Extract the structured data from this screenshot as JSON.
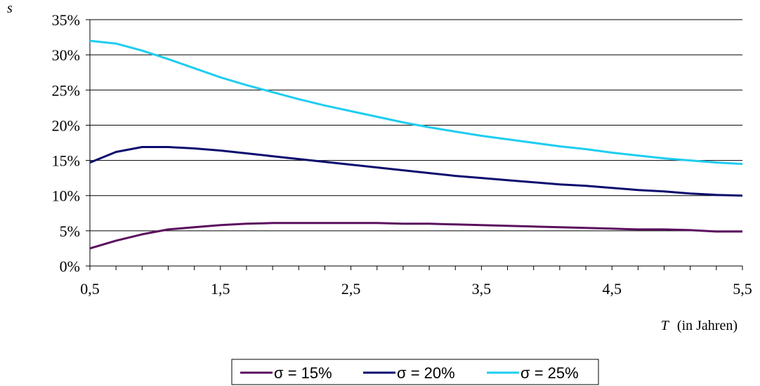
{
  "chart_data": {
    "type": "line",
    "ylabel": "s",
    "xlabel": {
      "symbol": "T",
      "text": "(in Jahren)"
    },
    "xlim": [
      0.5,
      5.5
    ],
    "ylim": [
      0,
      0.35
    ],
    "grid": "horizontal",
    "legend_position": "bottom",
    "x_ticks": [
      {
        "value": 0.5,
        "label": "0,5"
      },
      {
        "value": 1.5,
        "label": "1,5"
      },
      {
        "value": 2.5,
        "label": "2,5"
      },
      {
        "value": 3.5,
        "label": "3,5"
      },
      {
        "value": 4.5,
        "label": "4,5"
      },
      {
        "value": 5.5,
        "label": "5,5"
      }
    ],
    "y_ticks": [
      {
        "value": 0,
        "label": "0%"
      },
      {
        "value": 0.05,
        "label": "5%"
      },
      {
        "value": 0.1,
        "label": "10%"
      },
      {
        "value": 0.15,
        "label": "15%"
      },
      {
        "value": 0.2,
        "label": "20%"
      },
      {
        "value": 0.25,
        "label": "25%"
      },
      {
        "value": 0.3,
        "label": "30%"
      },
      {
        "value": 0.35,
        "label": "35%"
      }
    ],
    "x": [
      0.5,
      0.7,
      0.9,
      1.1,
      1.3,
      1.5,
      1.7,
      1.9,
      2.1,
      2.3,
      2.5,
      2.7,
      2.9,
      3.1,
      3.3,
      3.5,
      3.7,
      3.9,
      4.1,
      4.3,
      4.5,
      4.7,
      4.9,
      5.1,
      5.3,
      5.5
    ],
    "series": [
      {
        "name": "σ = 15%",
        "color": "#5b0f5e",
        "values": [
          0.025,
          0.036,
          0.045,
          0.052,
          0.055,
          0.058,
          0.06,
          0.061,
          0.061,
          0.061,
          0.061,
          0.061,
          0.06,
          0.06,
          0.059,
          0.058,
          0.057,
          0.056,
          0.055,
          0.054,
          0.053,
          0.052,
          0.052,
          0.051,
          0.049,
          0.049
        ]
      },
      {
        "name": "σ = 20%",
        "color": "#0b0b6e",
        "values": [
          0.147,
          0.162,
          0.169,
          0.169,
          0.167,
          0.164,
          0.16,
          0.156,
          0.152,
          0.148,
          0.144,
          0.14,
          0.136,
          0.132,
          0.128,
          0.125,
          0.122,
          0.119,
          0.116,
          0.114,
          0.111,
          0.108,
          0.106,
          0.103,
          0.101,
          0.1
        ]
      },
      {
        "name": "σ = 25%",
        "color": "#1ecdf0",
        "values": [
          0.32,
          0.316,
          0.306,
          0.294,
          0.281,
          0.268,
          0.257,
          0.247,
          0.237,
          0.228,
          0.22,
          0.212,
          0.204,
          0.197,
          0.191,
          0.185,
          0.18,
          0.175,
          0.17,
          0.166,
          0.161,
          0.157,
          0.153,
          0.15,
          0.147,
          0.145
        ]
      }
    ]
  }
}
